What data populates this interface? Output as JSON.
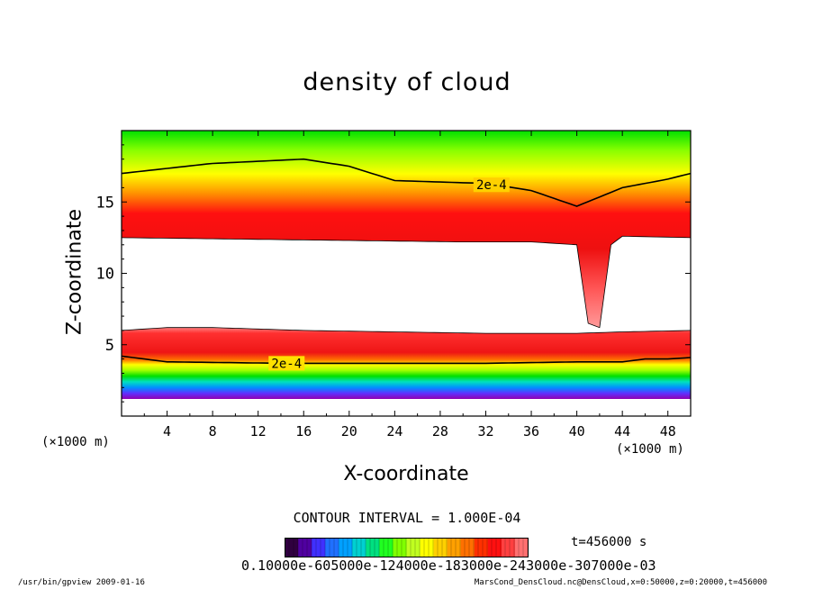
{
  "chart_data": {
    "type": "heatmap",
    "title": "density of cloud",
    "xlabel": "X-coordinate",
    "ylabel": "Z-coordinate",
    "x_unit_left": "(×1000 m)",
    "x_unit_right": "(×1000 m)",
    "xlim": [
      0,
      50
    ],
    "ylim": [
      0,
      20
    ],
    "x_ticks": [
      4,
      8,
      12,
      16,
      20,
      24,
      28,
      32,
      36,
      40,
      44,
      48
    ],
    "y_ticks": [
      5,
      10,
      15
    ],
    "contour_labels": [
      {
        "text": "2e-4",
        "x": 32.5,
        "y": 16.2
      },
      {
        "text": "2e-4",
        "x": 14.5,
        "y": 3.7
      }
    ],
    "contour_interval_text": "CONTOUR INTERVAL = 1.000E-04",
    "time_text": "t=456000 s",
    "colorbar_labels_text": "0.10000e-605000e-124000e-183000e-243000e-307000e-03",
    "colors": {
      "background": "#ffffff",
      "frame": "#000000",
      "cloud_max": "#ff0000",
      "cloud_mid": "#ffff00",
      "cloud_low": "#00ff00",
      "cloud_base": "#8000c0"
    },
    "upper_layer_top_z": [
      [
        0,
        17.0
      ],
      [
        8,
        17.7
      ],
      [
        16,
        18.0
      ],
      [
        20,
        17.5
      ],
      [
        24,
        16.5
      ],
      [
        28,
        16.4
      ],
      [
        32,
        16.3
      ],
      [
        36,
        15.8
      ],
      [
        40,
        14.7
      ],
      [
        44,
        16.0
      ],
      [
        48,
        16.6
      ],
      [
        50,
        17.0
      ]
    ],
    "upper_layer_bottom_z": [
      [
        0,
        12.5
      ],
      [
        10,
        12.4
      ],
      [
        20,
        12.3
      ],
      [
        30,
        12.2
      ],
      [
        36,
        12.2
      ],
      [
        38,
        12.1
      ],
      [
        40,
        12.0
      ],
      [
        41,
        6.5
      ],
      [
        42,
        6.2
      ],
      [
        43,
        12.0
      ],
      [
        44,
        12.6
      ],
      [
        50,
        12.5
      ]
    ],
    "lower_layer_top_z": [
      [
        0,
        6.0
      ],
      [
        4,
        6.2
      ],
      [
        8,
        6.2
      ],
      [
        16,
        6.0
      ],
      [
        24,
        5.9
      ],
      [
        32,
        5.8
      ],
      [
        40,
        5.8
      ],
      [
        44,
        5.9
      ],
      [
        50,
        6.0
      ]
    ],
    "lower_contour_z": [
      [
        0,
        4.2
      ],
      [
        4,
        3.8
      ],
      [
        14,
        3.7
      ],
      [
        24,
        3.7
      ],
      [
        32,
        3.7
      ],
      [
        40,
        3.8
      ],
      [
        44,
        3.8
      ],
      [
        46,
        4.0
      ],
      [
        48,
        4.0
      ],
      [
        50,
        4.1
      ]
    ],
    "lower_layer_bottom_z": [
      [
        0,
        1.2
      ],
      [
        50,
        1.2
      ]
    ]
  },
  "footer": {
    "left": "/usr/bin/gpview   2009-01-16",
    "right": "MarsCond_DensCloud.nc@DensCloud,x=0:50000,z=0:20000,t=456000"
  }
}
